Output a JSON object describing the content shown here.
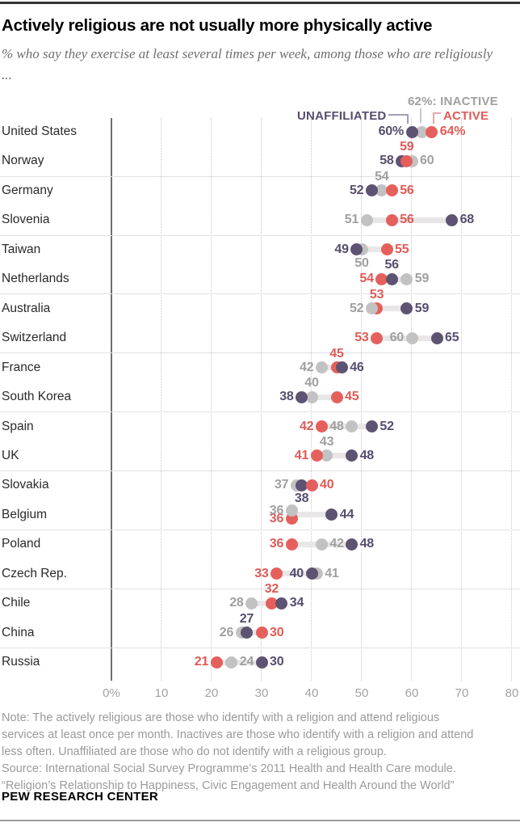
{
  "header": {
    "title": "Actively religious are not usually more physically active",
    "subtitle": "% who say they exercise at least several times per week, among those who are religiously ..."
  },
  "legend": {
    "inactive": "62%: INACTIVE",
    "unaffiliated": "UNAFFILIATED",
    "active": "ACTIVE"
  },
  "colors": {
    "active": "#e5605c",
    "inactive": "#c3c2c2",
    "unaffiliated": "#5d5372",
    "active_text": "#df5a56",
    "inactive_text": "#a0a0a0",
    "unaffiliated_text": "#564d6e",
    "connector": "#e8e6e6"
  },
  "chart_data": {
    "type": "scatter",
    "title": "Actively religious are not usually more physically active",
    "subtitle": "% who say they exercise at least several times per week, among those who are religiously ...",
    "xlim": [
      0,
      80
    ],
    "grid": "dotted-vertical",
    "legend_position": "top-right",
    "series_names": [
      "active",
      "inactive",
      "unaffiliated"
    ],
    "x_ticks": [
      {
        "value": 0,
        "label": "0%"
      },
      {
        "value": 10,
        "label": "10"
      },
      {
        "value": 20,
        "label": "20"
      },
      {
        "value": 30,
        "label": "30"
      },
      {
        "value": 40,
        "label": "40"
      },
      {
        "value": 50,
        "label": "50"
      },
      {
        "value": 60,
        "label": "60"
      },
      {
        "value": 70,
        "label": "70"
      },
      {
        "value": 80,
        "label": "80"
      }
    ],
    "separator_after_rows": [
      1,
      3,
      5,
      7,
      9,
      11,
      13,
      15,
      17
    ],
    "countries": [
      {
        "name": "United States",
        "active": 64,
        "inactive": 62,
        "unaffiliated": 60,
        "points": [
          {
            "series": "inactive",
            "value": 62,
            "label": "",
            "label_pos": "none"
          },
          {
            "series": "unaffiliated",
            "value": 60,
            "label": "60%",
            "label_pos": "left"
          },
          {
            "series": "active",
            "value": 64,
            "label": "64%",
            "label_pos": "right"
          }
        ]
      },
      {
        "name": "Norway",
        "active": 59,
        "inactive": 60,
        "unaffiliated": 58,
        "points": [
          {
            "series": "unaffiliated",
            "value": 58,
            "label": "58",
            "label_pos": "left"
          },
          {
            "series": "inactive",
            "value": 60,
            "label": "60",
            "label_pos": "right"
          },
          {
            "series": "active",
            "value": 59,
            "label": "59",
            "label_pos": "above"
          }
        ]
      },
      {
        "name": "Germany",
        "active": 56,
        "inactive": 54,
        "unaffiliated": 52,
        "points": [
          {
            "series": "inactive",
            "value": 54,
            "label": "54",
            "label_pos": "above"
          },
          {
            "series": "unaffiliated",
            "value": 52,
            "label": "52",
            "label_pos": "left"
          },
          {
            "series": "active",
            "value": 56,
            "label": "56",
            "label_pos": "right"
          }
        ]
      },
      {
        "name": "Slovenia",
        "active": 56,
        "inactive": 51,
        "unaffiliated": 68,
        "points": [
          {
            "series": "inactive",
            "value": 51,
            "label": "51",
            "label_pos": "left"
          },
          {
            "series": "active",
            "value": 56,
            "label": "56",
            "label_pos": "right"
          },
          {
            "series": "unaffiliated",
            "value": 68,
            "label": "68",
            "label_pos": "right"
          }
        ]
      },
      {
        "name": "Taiwan",
        "active": 55,
        "inactive": 50,
        "unaffiliated": 49,
        "points": [
          {
            "series": "inactive",
            "value": 50,
            "label": "50",
            "label_pos": "below"
          },
          {
            "series": "unaffiliated",
            "value": 49,
            "label": "49",
            "label_pos": "left"
          },
          {
            "series": "active",
            "value": 55,
            "label": "55",
            "label_pos": "right"
          }
        ]
      },
      {
        "name": "Netherlands",
        "active": 54,
        "inactive": 59,
        "unaffiliated": 56,
        "points": [
          {
            "series": "active",
            "value": 54,
            "label": "54",
            "label_pos": "left"
          },
          {
            "series": "unaffiliated",
            "value": 56,
            "label": "56",
            "label_pos": "above"
          },
          {
            "series": "inactive",
            "value": 59,
            "label": "59",
            "label_pos": "right"
          }
        ]
      },
      {
        "name": "Australia",
        "active": 53,
        "inactive": 52,
        "unaffiliated": 59,
        "points": [
          {
            "series": "active",
            "value": 53,
            "label": "53",
            "label_pos": "above"
          },
          {
            "series": "inactive",
            "value": 52,
            "label": "52",
            "label_pos": "left"
          },
          {
            "series": "unaffiliated",
            "value": 59,
            "label": "59",
            "label_pos": "right"
          }
        ]
      },
      {
        "name": "Switzerland",
        "active": 53,
        "inactive": 60,
        "unaffiliated": 65,
        "points": [
          {
            "series": "active",
            "value": 53,
            "label": "53",
            "label_pos": "left"
          },
          {
            "series": "inactive",
            "value": 60,
            "label": "60",
            "label_pos": "left"
          },
          {
            "series": "unaffiliated",
            "value": 65,
            "label": "65",
            "label_pos": "right"
          }
        ]
      },
      {
        "name": "France",
        "active": 45,
        "inactive": 42,
        "unaffiliated": 46,
        "points": [
          {
            "series": "inactive",
            "value": 42,
            "label": "42",
            "label_pos": "left"
          },
          {
            "series": "active",
            "value": 45,
            "label": "45",
            "label_pos": "above"
          },
          {
            "series": "unaffiliated",
            "value": 46,
            "label": "46",
            "label_pos": "right"
          }
        ]
      },
      {
        "name": "South Korea",
        "active": 45,
        "inactive": 40,
        "unaffiliated": 38,
        "points": [
          {
            "series": "inactive",
            "value": 40,
            "label": "40",
            "label_pos": "above"
          },
          {
            "series": "unaffiliated",
            "value": 38,
            "label": "38",
            "label_pos": "left"
          },
          {
            "series": "active",
            "value": 45,
            "label": "45",
            "label_pos": "right"
          }
        ]
      },
      {
        "name": "Spain",
        "active": 42,
        "inactive": 48,
        "unaffiliated": 52,
        "points": [
          {
            "series": "active",
            "value": 42,
            "label": "42",
            "label_pos": "left"
          },
          {
            "series": "inactive",
            "value": 48,
            "label": "48",
            "label_pos": "left"
          },
          {
            "series": "unaffiliated",
            "value": 52,
            "label": "52",
            "label_pos": "right"
          }
        ]
      },
      {
        "name": "UK",
        "active": 41,
        "inactive": 43,
        "unaffiliated": 48,
        "points": [
          {
            "series": "inactive",
            "value": 43,
            "label": "43",
            "label_pos": "above"
          },
          {
            "series": "active",
            "value": 41,
            "label": "41",
            "label_pos": "left"
          },
          {
            "series": "unaffiliated",
            "value": 48,
            "label": "48",
            "label_pos": "right"
          }
        ]
      },
      {
        "name": "Slovakia",
        "active": 40,
        "inactive": 37,
        "unaffiliated": 38,
        "points": [
          {
            "series": "inactive",
            "value": 37,
            "label": "37",
            "label_pos": "left"
          },
          {
            "series": "unaffiliated",
            "value": 38,
            "label": "38",
            "label_pos": "below"
          },
          {
            "series": "active",
            "value": 40,
            "label": "40",
            "label_pos": "right"
          }
        ]
      },
      {
        "name": "Belgium",
        "active": 36,
        "inactive": 36,
        "unaffiliated": 44,
        "points": [
          {
            "series": "active",
            "value": 36,
            "label": "36",
            "label_pos": "left",
            "dy": 5
          },
          {
            "series": "inactive",
            "value": 36,
            "label": "36",
            "label_pos": "left",
            "dy": -5
          },
          {
            "series": "unaffiliated",
            "value": 44,
            "label": "44",
            "label_pos": "right"
          }
        ]
      },
      {
        "name": "Poland",
        "active": 36,
        "inactive": 42,
        "unaffiliated": 48,
        "points": [
          {
            "series": "active",
            "value": 36,
            "label": "36",
            "label_pos": "left"
          },
          {
            "series": "inactive",
            "value": 42,
            "label": "42",
            "label_pos": "right"
          },
          {
            "series": "unaffiliated",
            "value": 48,
            "label": "48",
            "label_pos": "right"
          }
        ]
      },
      {
        "name": "Czech Rep.",
        "active": 33,
        "inactive": 41,
        "unaffiliated": 40,
        "points": [
          {
            "series": "inactive",
            "value": 41,
            "label": "41",
            "label_pos": "right"
          },
          {
            "series": "unaffiliated",
            "value": 40,
            "label": "40",
            "label_pos": "left"
          },
          {
            "series": "active",
            "value": 33,
            "label": "33",
            "label_pos": "left"
          }
        ]
      },
      {
        "name": "Chile",
        "active": 32,
        "inactive": 28,
        "unaffiliated": 34,
        "points": [
          {
            "series": "inactive",
            "value": 28,
            "label": "28",
            "label_pos": "left"
          },
          {
            "series": "active",
            "value": 32,
            "label": "32",
            "label_pos": "above"
          },
          {
            "series": "unaffiliated",
            "value": 34,
            "label": "34",
            "label_pos": "right"
          }
        ]
      },
      {
        "name": "China",
        "active": 30,
        "inactive": 26,
        "unaffiliated": 27,
        "points": [
          {
            "series": "inactive",
            "value": 26,
            "label": "26",
            "label_pos": "left"
          },
          {
            "series": "unaffiliated",
            "value": 27,
            "label": "27",
            "label_pos": "above"
          },
          {
            "series": "active",
            "value": 30,
            "label": "30",
            "label_pos": "right"
          }
        ]
      },
      {
        "name": "Russia",
        "active": 21,
        "inactive": 24,
        "unaffiliated": 30,
        "points": [
          {
            "series": "active",
            "value": 21,
            "label": "21",
            "label_pos": "left"
          },
          {
            "series": "inactive",
            "value": 24,
            "label": "24",
            "label_pos": "right"
          },
          {
            "series": "unaffiliated",
            "value": 30,
            "label": "30",
            "label_pos": "right"
          }
        ]
      }
    ]
  },
  "notes": {
    "lines": [
      "Note: The actively religious are those who identify with a religion and attend religious",
      "services at least once per month. Inactives are those who identify with a religion and attend",
      "less often. Unaffiliated are those who do not identify with a religious group.",
      "Source: International Social Survey Programme’s 2011 Health and Health Care module.",
      "“Religion’s Relationship to Happiness, Civic Engagement and Health Around the World”"
    ]
  },
  "footer": {
    "brand": "PEW RESEARCH CENTER"
  }
}
